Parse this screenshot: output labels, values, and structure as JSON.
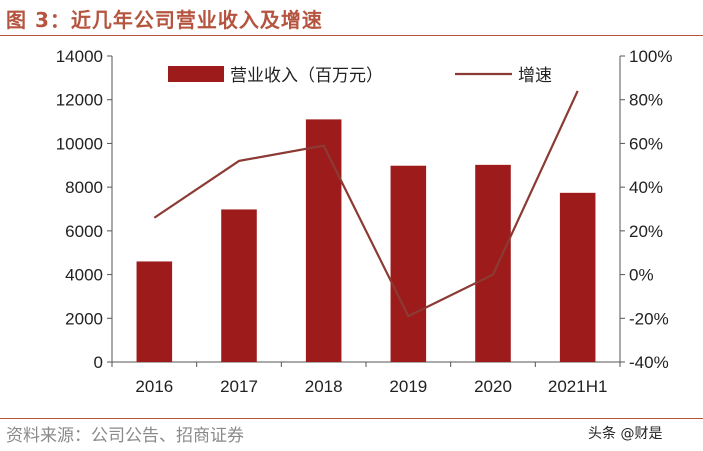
{
  "figure": {
    "title": "图 3：近几年公司营业收入及增速",
    "source": "资料来源：公司公告、招商证券",
    "watermark": "头条 @财是"
  },
  "chart_data": {
    "type": "bar",
    "categories": [
      "2016",
      "2017",
      "2018",
      "2019",
      "2020",
      "2021H1"
    ],
    "series": [
      {
        "name": "营业收入（百万元）",
        "type": "bar",
        "axis": "left",
        "values": [
          4600,
          6980,
          11100,
          8980,
          9020,
          7740
        ],
        "color": "#9e1b1b"
      },
      {
        "name": "增速",
        "type": "line",
        "axis": "right",
        "values": [
          26,
          52,
          59,
          -19,
          0,
          84
        ],
        "color": "#8b3a34"
      }
    ],
    "yleft": {
      "ylim": [
        0,
        14000
      ],
      "ticks": [
        "0",
        "2000",
        "4000",
        "6000",
        "8000",
        "10000",
        "12000",
        "14000"
      ]
    },
    "yright": {
      "ylim": [
        -40,
        100
      ],
      "ticks": [
        "-40%",
        "-20%",
        "0%",
        "20%",
        "40%",
        "60%",
        "80%",
        "100%"
      ]
    },
    "legend_placement": "top",
    "grid": false
  }
}
